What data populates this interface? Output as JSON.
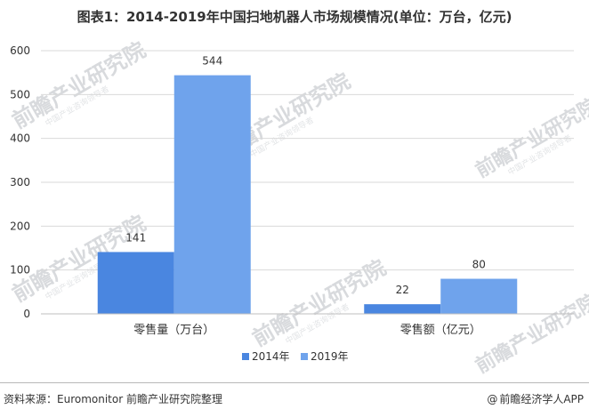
{
  "chart_data": {
    "type": "bar",
    "title": "图表1：2014-2019年中国扫地机器人市场规模情况(单位：万台，亿元)",
    "categories": [
      "零售量（万台）",
      "零售额（亿元）"
    ],
    "series": [
      {
        "name": "2014年",
        "values": [
          141,
          22
        ],
        "color": "#4a86e0"
      },
      {
        "name": "2019年",
        "values": [
          544,
          80
        ],
        "color": "#6fa3ec"
      }
    ],
    "ylim": [
      0,
      600
    ],
    "yticks": [
      0,
      100,
      200,
      300,
      400,
      500,
      600
    ],
    "xlabel": "",
    "ylabel": "",
    "grid": true,
    "legend": "bottom"
  },
  "footer": {
    "source": "资料来源：Euromonitor 前瞻产业研究院整理",
    "brand": "前瞻经济学人APP",
    "brand_prefix": "@"
  },
  "watermark": {
    "text": "前瞻产业研究院",
    "sub": "中国产业咨询领导者"
  }
}
